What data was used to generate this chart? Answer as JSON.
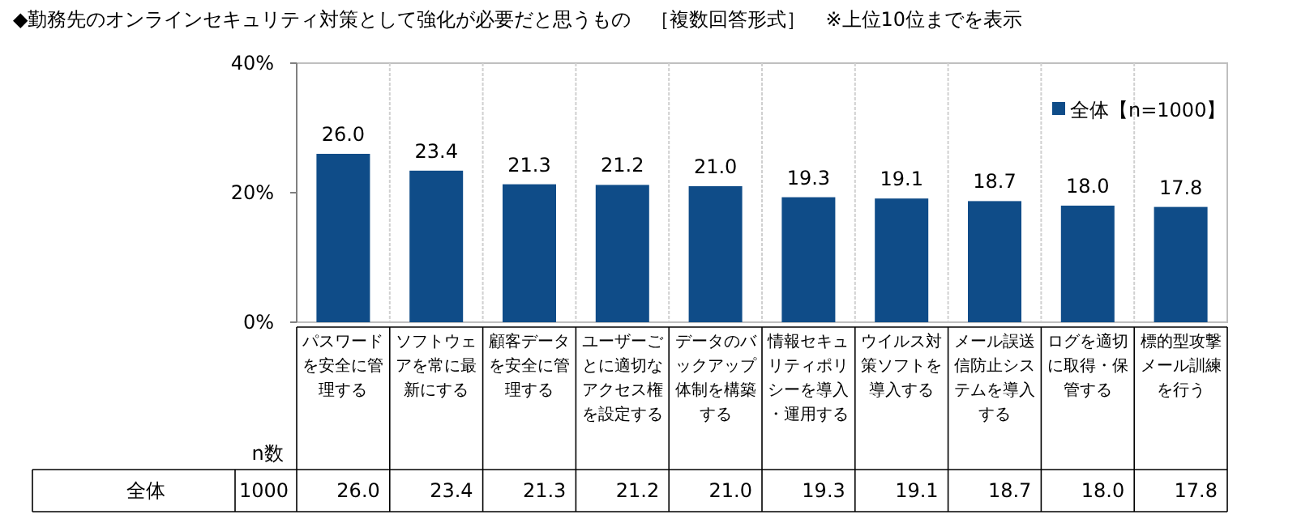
{
  "chart_data": {
    "type": "bar",
    "title": "◆勤務先のオンラインセキュリティ対策として強化が必要だと思うもの　［複数回答形式］　※上位10位までを表示",
    "categories": [
      "パスワードを安全に管理する",
      "ソフトウェアを常に最新にする",
      "顧客データを安全に管理する",
      "ユーザーごとに適切なアクセス権を設定する",
      "データのバックアップ体制を構築する",
      "情報セキュリティポリシーを導入・運用する",
      "ウイルス対策ソフトを導入する",
      "メール誤送信防止システムを導入する",
      "ログを適切に取得・保管する",
      "標的型攻撃メール訓練を行う"
    ],
    "series": [
      {
        "name": "全体【n=1000】",
        "color": "#0f4c88",
        "values": [
          26.0,
          23.4,
          21.3,
          21.2,
          21.0,
          19.3,
          19.1,
          18.7,
          18.0,
          17.8
        ],
        "value_labels": [
          "26.0",
          "23.4",
          "21.3",
          "21.2",
          "21.0",
          "19.3",
          "19.1",
          "18.7",
          "18.0",
          "17.8"
        ]
      }
    ],
    "ylim": [
      0,
      40
    ],
    "yticks": [
      {
        "value": 0,
        "label": "0%"
      },
      {
        "value": 20,
        "label": "20%"
      },
      {
        "value": 40,
        "label": "40%"
      }
    ],
    "grid": "x",
    "legend": "top right",
    "annotations": [
      "n数",
      "全体",
      "1000"
    ]
  }
}
